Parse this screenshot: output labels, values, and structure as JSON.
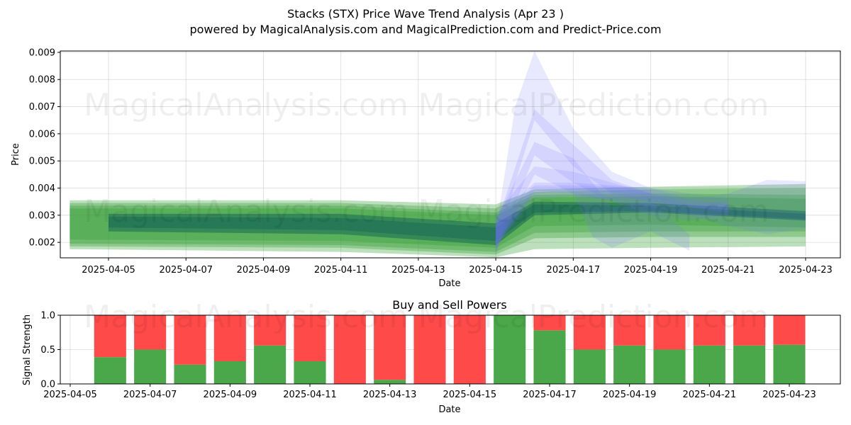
{
  "title_line1": "Stacks (STX) Price Wave Trend Analysis (Apr 23 )",
  "title_line2": "powered by MagicalAnalysis.com and MagicalPrediction.com and Predict-Price.com",
  "watermarks": [
    "MagicalAnalysis.com",
    "MagicalPrediction.com"
  ],
  "colors": {
    "green_band": "#2e9a2e",
    "dark_band": "#1a6a55",
    "blue_band": "#7070ff",
    "buy": "#4aa84a",
    "sell": "#ff4a4a"
  },
  "chart_data": [
    {
      "type": "area",
      "title": "",
      "xlabel": "Date",
      "ylabel": "Price",
      "xlim": [
        "2025-04-04",
        "2025-04-23"
      ],
      "ylim": [
        0.00143,
        0.00905
      ],
      "yticks": [
        "0.002",
        "0.003",
        "0.004",
        "0.005",
        "0.006",
        "0.007",
        "0.008",
        "0.009"
      ],
      "xticks": [
        "2025-04-05",
        "2025-04-07",
        "2025-04-09",
        "2025-04-11",
        "2025-04-13",
        "2025-04-15",
        "2025-04-17",
        "2025-04-19",
        "2025-04-21",
        "2025-04-23"
      ],
      "grid": true,
      "green_bands": [
        {
          "x": [
            "2025-04-04",
            "2025-04-11",
            "2025-04-15",
            "2025-04-16",
            "2025-04-19",
            "2025-04-23"
          ],
          "lower": [
            0.00175,
            0.00165,
            0.00145,
            0.00175,
            0.0018,
            0.00185
          ],
          "upper": [
            0.00355,
            0.00355,
            0.0034,
            0.00395,
            0.00405,
            0.00415
          ]
        },
        {
          "x": [
            "2025-04-04",
            "2025-04-11",
            "2025-04-15",
            "2025-04-16",
            "2025-04-19",
            "2025-04-23"
          ],
          "lower": [
            0.00185,
            0.0018,
            0.00155,
            0.00215,
            0.0022,
            0.0022
          ],
          "upper": [
            0.00345,
            0.00345,
            0.00325,
            0.00385,
            0.00395,
            0.004
          ]
        },
        {
          "x": [
            "2025-04-04",
            "2025-04-11",
            "2025-04-15",
            "2025-04-16",
            "2025-04-19",
            "2025-04-23"
          ],
          "lower": [
            0.00195,
            0.0019,
            0.00165,
            0.00235,
            0.0024,
            0.0024
          ],
          "upper": [
            0.00335,
            0.00335,
            0.0031,
            0.00375,
            0.0038,
            0.00375
          ]
        },
        {
          "x": [
            "2025-04-04",
            "2025-04-11",
            "2025-04-15",
            "2025-04-16",
            "2025-04-19",
            "2025-04-23"
          ],
          "lower": [
            0.0021,
            0.00205,
            0.0018,
            0.0026,
            0.00265,
            0.00255
          ],
          "upper": [
            0.00325,
            0.00325,
            0.003,
            0.00365,
            0.0037,
            0.0036
          ]
        }
      ],
      "dark_bands": [
        {
          "x": [
            "2025-04-05",
            "2025-04-11",
            "2025-04-15",
            "2025-04-16",
            "2025-04-19",
            "2025-04-23"
          ],
          "lower": [
            0.0024,
            0.0023,
            0.0019,
            0.003,
            0.0031,
            0.0028
          ],
          "upper": [
            0.00305,
            0.00305,
            0.0027,
            0.0035,
            0.00345,
            0.00315
          ]
        },
        {
          "x": [
            "2025-04-05",
            "2025-04-11",
            "2025-04-15",
            "2025-04-16",
            "2025-04-19",
            "2025-04-23"
          ],
          "lower": [
            0.00255,
            0.00245,
            0.00205,
            0.0031,
            0.00315,
            0.00285
          ],
          "upper": [
            0.00295,
            0.0029,
            0.00255,
            0.0034,
            0.00335,
            0.00305
          ]
        }
      ],
      "blue_bands": [
        {
          "x": [
            "2025-04-15",
            "2025-04-15.5",
            "2025-04-16",
            "2025-04-17",
            "2025-04-18",
            "2025-04-19",
            "2025-04-20",
            "2025-04-21"
          ],
          "lower": [
            0.0015,
            0.0042,
            0.0065,
            0.0048,
            0.0038,
            0.0035,
            0.0033,
            0.0031
          ],
          "upper": [
            0.0024,
            0.007,
            0.00905,
            0.0062,
            0.0046,
            0.004,
            0.0036,
            0.0034
          ]
        },
        {
          "x": [
            "2025-04-15",
            "2025-04-16",
            "2025-04-17",
            "2025-04-18",
            "2025-04-19",
            "2025-04-20",
            "2025-04-21"
          ],
          "lower": [
            0.0016,
            0.0052,
            0.0042,
            0.0035,
            0.003,
            0.0028,
            0.003
          ],
          "upper": [
            0.0026,
            0.0069,
            0.0056,
            0.0043,
            0.0038,
            0.0034,
            0.0035
          ]
        },
        {
          "x": [
            "2025-04-15",
            "2025-04-16",
            "2025-04-17",
            "2025-04-17.5",
            "2025-04-18",
            "2025-04-19",
            "2025-04-20"
          ],
          "lower": [
            0.0017,
            0.0045,
            0.0038,
            0.0022,
            0.0018,
            0.0024,
            0.0017
          ],
          "upper": [
            0.0028,
            0.0057,
            0.0051,
            0.0042,
            0.0033,
            0.0035,
            0.0023
          ]
        },
        {
          "x": [
            "2025-04-15",
            "2025-04-16",
            "2025-04-17",
            "2025-04-18",
            "2025-04-19",
            "2025-04-20",
            "2025-04-21",
            "2025-04-22",
            "2025-04-23"
          ],
          "lower": [
            0.0018,
            0.0039,
            0.0038,
            0.0035,
            0.0033,
            0.003,
            0.0026,
            0.0023,
            0.0025
          ],
          "upper": [
            0.003,
            0.0048,
            0.0046,
            0.0042,
            0.0038,
            0.0036,
            0.0038,
            0.0043,
            0.00425
          ]
        },
        {
          "x": [
            "2025-04-15",
            "2025-04-16",
            "2025-04-17",
            "2025-04-18",
            "2025-04-19",
            "2025-04-20",
            "2025-04-21"
          ],
          "lower": [
            0.0019,
            0.0036,
            0.0037,
            0.0036,
            0.0035,
            0.0033,
            0.0032
          ],
          "upper": [
            0.0029,
            0.0042,
            0.0042,
            0.0041,
            0.004,
            0.0038,
            0.0036
          ]
        },
        {
          "x": [
            "2025-04-15",
            "2025-04-16",
            "2025-04-17",
            "2025-04-18",
            "2025-04-19"
          ],
          "lower": [
            0.002,
            0.0038,
            0.0039,
            0.00385,
            0.00375
          ],
          "upper": [
            0.0027,
            0.0041,
            0.0041,
            0.00405,
            0.00395
          ]
        }
      ]
    },
    {
      "type": "bar",
      "title": "Buy and Sell Powers",
      "xlabel": "Date",
      "ylabel": "Signal Strength",
      "ylim": [
        0,
        1.0
      ],
      "yticks": [
        "0.0",
        "0.5",
        "1.0"
      ],
      "xlim": [
        "2025-04-04.8",
        "2025-04-24.5"
      ],
      "xticks": [
        "2025-04-05",
        "2025-04-07",
        "2025-04-09",
        "2025-04-11",
        "2025-04-13",
        "2025-04-15",
        "2025-04-17",
        "2025-04-19",
        "2025-04-21",
        "2025-04-23"
      ],
      "grid": true,
      "categories": [
        "2025-04-06",
        "2025-04-07",
        "2025-04-08",
        "2025-04-09",
        "2025-04-10",
        "2025-04-11",
        "2025-04-12",
        "2025-04-13",
        "2025-04-14",
        "2025-04-15",
        "2025-04-16",
        "2025-04-17",
        "2025-04-18",
        "2025-04-19",
        "2025-04-20",
        "2025-04-21",
        "2025-04-22",
        "2025-04-23"
      ],
      "series": [
        {
          "name": "",
          "values": [
            0.39,
            0.5,
            0.28,
            0.33,
            0.56,
            0.33,
            0.0,
            0.06,
            0.0,
            0.0,
            1.0,
            0.78,
            0.5,
            0.56,
            0.5,
            0.56,
            0.56,
            0.57
          ]
        },
        {
          "name": "",
          "values": [
            0.61,
            0.5,
            0.72,
            0.67,
            0.44,
            0.67,
            1.0,
            0.94,
            1.0,
            1.0,
            0.0,
            0.22,
            0.5,
            0.44,
            0.5,
            0.44,
            0.44,
            0.43
          ]
        }
      ]
    }
  ]
}
